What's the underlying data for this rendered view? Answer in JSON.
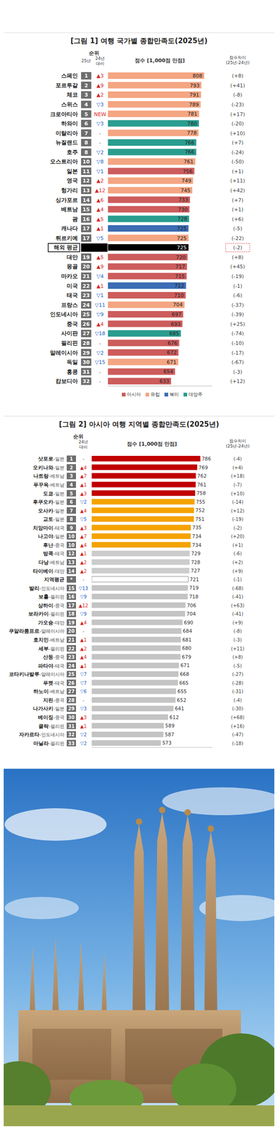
{
  "chart_data": [
    {
      "type": "bar",
      "orientation": "horizontal",
      "title": "[그림 1] 여행 국가별 종합만족도(2025년)",
      "headers": {
        "rank": "순위",
        "year": "25년",
        "change": "24년 대비",
        "value": "점수 [1,000점 만점]",
        "diff": [
          "점수차이",
          "(25년-24년)"
        ]
      },
      "categories": [
        "스페인",
        "포르투갈",
        "체코",
        "스위스",
        "크로아티아",
        "하와이",
        "이탈리아",
        "뉴질랜드",
        "호주",
        "오스트리아",
        "일본",
        "영국",
        "헝가리",
        "싱가포르",
        "베트남",
        "괌",
        "캐나다",
        "튀르키예",
        "해외 평균",
        "대만",
        "몽골",
        "마카오",
        "미국",
        "태국",
        "프랑스",
        "인도네시아",
        "중국",
        "사이판",
        "필리핀",
        "말레이시아",
        "독일",
        "홍콩",
        "캄보디아"
      ],
      "values": [
        808,
        793,
        791,
        789,
        781,
        780,
        778,
        766,
        766,
        761,
        756,
        749,
        745,
        733,
        730,
        728,
        725,
        725,
        725,
        720,
        717,
        715,
        712,
        710,
        704,
        697,
        693,
        685,
        676,
        672,
        671,
        654,
        633
      ],
      "ranks": [
        1,
        2,
        3,
        4,
        5,
        6,
        7,
        8,
        8,
        10,
        11,
        12,
        13,
        14,
        15,
        16,
        17,
        17,
        null,
        19,
        20,
        21,
        22,
        23,
        24,
        25,
        26,
        27,
        28,
        29,
        30,
        31,
        32
      ],
      "rank_changes": [
        "▲3",
        "▲9",
        "▲2",
        "▽3",
        "NEW",
        "▽3",
        "-",
        "-",
        "▽2",
        "▽8",
        "▽1",
        "▲2",
        "▲12",
        "▲6",
        "▲4",
        "▲5",
        "▲1",
        "▽5",
        null,
        "▲5",
        "▲9",
        "▽4",
        "▲1",
        "▽1",
        "▽11",
        "▽9",
        "▲4",
        "▽18",
        "-",
        "▽2",
        "▽15",
        "-",
        "-"
      ],
      "score_changes": [
        "(+8)",
        "(+41)",
        "(-8)",
        "(-23)",
        "(+17)",
        "(-20)",
        "(+10)",
        "(+7)",
        "(-24)",
        "(-50)",
        "(+1)",
        "(+11)",
        "(+42)",
        "(+7)",
        "(+1)",
        "(+6)",
        "(-5)",
        "(-22)",
        "(-2)",
        "(+8)",
        "(+45)",
        "(-19)",
        "(-1)",
        "(-6)",
        "(-37)",
        "(-39)",
        "(+25)",
        "(-74)",
        "(-10)",
        "(-17)",
        "(-67)",
        "(-3)",
        "(+12)"
      ],
      "colors": [
        "#f4a582",
        "#f4a582",
        "#f4a582",
        "#f4a582",
        "#f4a582",
        "#2a9d8f",
        "#f4a582",
        "#2a9d8f",
        "#2a9d8f",
        "#f4a582",
        "#cd5c5c",
        "#f4a582",
        "#f4a582",
        "#cd5c5c",
        "#cd5c5c",
        "#2a9d8f",
        "#3b6cb4",
        "#f4a582",
        "#000000",
        "#cd5c5c",
        "#cd5c5c",
        "#cd5c5c",
        "#3b6cb4",
        "#cd5c5c",
        "#f4a582",
        "#cd5c5c",
        "#cd5c5c",
        "#2a9d8f",
        "#cd5c5c",
        "#cd5c5c",
        "#f4a582",
        "#cd5c5c",
        "#cd5c5c"
      ],
      "legend_entries": [
        {
          "name": "아시아",
          "color": "#cd5c5c"
        },
        {
          "name": "유럽",
          "color": "#f4a582"
        },
        {
          "name": "북미",
          "color": "#3b6cb4"
        },
        {
          "name": "대양주",
          "color": "#2a9d8f"
        }
      ],
      "xlim": [
        300,
        850
      ],
      "tick_labels": false,
      "data_labels": true
    },
    {
      "type": "bar",
      "orientation": "horizontal",
      "title": "[그림 2] 아시아 여행 지역별 종합만족도(2025년)",
      "headers": {
        "rank": "순위",
        "change": "24년 대비",
        "value": "점수 [1,000점 만점]",
        "diff": [
          "점수차이",
          "(25년-24년)"
        ]
      },
      "categories": [
        "삿포로-일본",
        "오키나와-일본",
        "나트랑-베트남",
        "푸꾸옥-베트남",
        "도쿄-일본",
        "후쿠오카-일본",
        "오사카-일본",
        "교토-일본",
        "치앙마이-태국",
        "나고야-일본",
        "후난-중국",
        "방콕-태국",
        "다낭-베트남",
        "타이베이-대만",
        "지역평균",
        "발리-인도네시아",
        "보홀-필리핀",
        "상하이-중국",
        "보라카이-필리핀",
        "가오슝-대만",
        "쿠알라룸프르-말레이시아",
        "호치민-베트남",
        "세부-필리핀",
        "산둥-중국",
        "파타야-태국",
        "코타키나발루-말레이시아",
        "푸켓-태국",
        "하노이-베트남",
        "지린-중국",
        "나가사키-일본",
        "베이징-중국",
        "클락-필리핀",
        "자카르타-인도네시아",
        "마닐라-필리핀"
      ],
      "values": [
        786,
        769,
        762,
        761,
        758,
        755,
        752,
        751,
        735,
        734,
        734,
        729,
        728,
        727,
        721,
        719,
        718,
        706,
        704,
        690,
        684,
        681,
        680,
        679,
        671,
        668,
        665,
        655,
        652,
        641,
        612,
        589,
        587,
        573
      ],
      "ranks": [
        1,
        2,
        3,
        4,
        5,
        6,
        7,
        8,
        9,
        10,
        10,
        12,
        13,
        14,
        "*",
        15,
        16,
        17,
        18,
        19,
        20,
        21,
        22,
        23,
        24,
        25,
        26,
        27,
        28,
        29,
        30,
        31,
        32,
        33
      ],
      "rank_changes": [
        "-",
        "▲4",
        "▲7",
        "▲1",
        "▲3",
        "▽2",
        "▲4",
        "▽5",
        "▲3",
        "▲7",
        "▲4",
        "▲1",
        "▲2",
        "▲2",
        "-",
        "▽13",
        "▽9",
        "▲12",
        "▽9",
        "▲4",
        "-",
        "▲1",
        "▲2",
        "▲4",
        "▲1",
        "▽7",
        "▽7",
        "▽6",
        "-",
        "▽3",
        "▲3",
        "▲1",
        "▽2",
        "▽2"
      ],
      "score_changes": [
        "(-4)",
        "(+4)",
        "(+18)",
        "(-7)",
        "(+10)",
        "(-14)",
        "(+12)",
        "(-19)",
        "(-2)",
        "(+20)",
        "(+1)",
        "(-6)",
        "(+2)",
        "(+9)",
        "(-1)",
        "(-68)",
        "(-41)",
        "(+63)",
        "(-41)",
        "(+9)",
        "(-8)",
        "(-3)",
        "(+11)",
        "(+8)",
        "(-5)",
        "(-27)",
        "(-28)",
        "(-31)",
        "(-4)",
        "(-30)",
        "(+68)",
        "(+16)",
        "(-47)",
        "(-18)"
      ],
      "colors": [
        "#c00000",
        "#c00000",
        "#c00000",
        "#c00000",
        "#c00000",
        "#f4a300",
        "#f4a300",
        "#f4a300",
        "#f4a300",
        "#f4a300",
        "#f4a300",
        "#cccccc",
        "#cccccc",
        "#cccccc",
        "#ffffff",
        "#c4c4c4",
        "#c4c4c4",
        "#c4c4c4",
        "#c4c4c4",
        "#c4c4c4",
        "#c4c4c4",
        "#c4c4c4",
        "#c4c4c4",
        "#c4c4c4",
        "#c4c4c4",
        "#c4c4c4",
        "#c4c4c4",
        "#c4c4c4",
        "#c4c4c4",
        "#c4c4c4",
        "#c4c4c4",
        "#c4c4c4",
        "#c4c4c4",
        "#c4c4c4"
      ],
      "xlim": [
        200,
        850
      ],
      "tick_labels": false,
      "data_labels": true
    }
  ]
}
